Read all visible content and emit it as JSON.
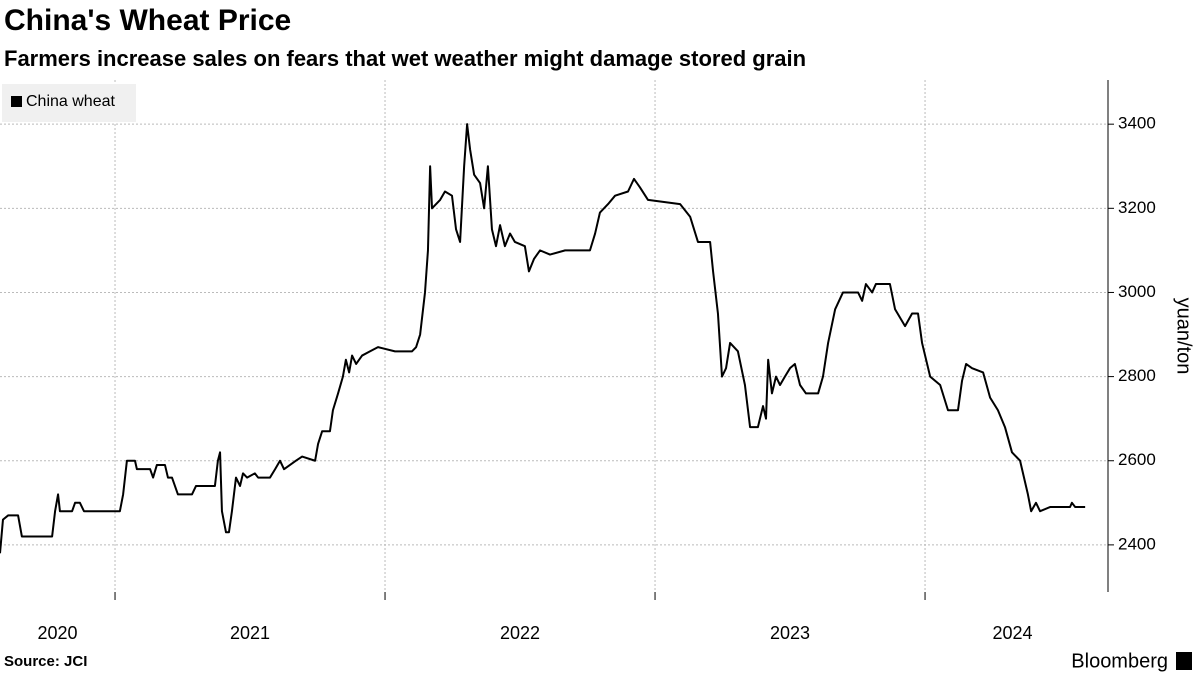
{
  "chart_data": {
    "type": "line",
    "title": "China's Wheat Price",
    "subtitle": "Farmers increase sales on fears that wet weather might damage stored grain",
    "y_label": "yuan/ton",
    "source": "Source: JCI",
    "brand": "Bloomberg",
    "legend": "top-left",
    "grid": true,
    "xlim": [
      2020.574,
      2024.648
    ],
    "xticks": [
      {
        "value": 2020,
        "label": "2020"
      },
      {
        "value": 2021,
        "label": "2021"
      },
      {
        "value": 2022,
        "label": "2022"
      },
      {
        "value": 2023,
        "label": "2023"
      },
      {
        "value": 2024,
        "label": "2024"
      }
    ],
    "ylim": [
      2288,
      3505
    ],
    "yticks": [
      2400,
      2600,
      2800,
      3000,
      3200,
      3400
    ],
    "x": [
      2020.574,
      2020.585,
      2020.604,
      2020.641,
      2020.655,
      2020.767,
      2020.778,
      2020.789,
      2020.796,
      2020.841,
      2020.852,
      2020.87,
      2020.885,
      2021.018,
      2021.03,
      2021.044,
      2021.074,
      2021.081,
      2021.13,
      2021.141,
      2021.155,
      2021.185,
      2021.196,
      2021.211,
      2021.233,
      2021.285,
      2021.3,
      2021.37,
      2021.381,
      2021.389,
      2021.396,
      2021.411,
      2021.422,
      2021.433,
      2021.448,
      2021.463,
      2021.474,
      2021.489,
      2021.518,
      2021.53,
      2021.574,
      2021.593,
      2021.611,
      2021.626,
      2021.67,
      2021.693,
      2021.741,
      2021.752,
      2021.767,
      2021.796,
      2021.807,
      2021.826,
      2021.844,
      2021.855,
      2021.867,
      2021.878,
      2021.893,
      2021.915,
      2021.944,
      2021.974,
      2022.037,
      2022.074,
      2022.1,
      2022.115,
      2022.13,
      2022.148,
      2022.159,
      2022.167,
      2022.174,
      2022.204,
      2022.222,
      2022.248,
      2022.263,
      2022.278,
      2022.293,
      2022.304,
      2022.315,
      2022.33,
      2022.352,
      2022.367,
      2022.381,
      2022.396,
      2022.411,
      2022.426,
      2022.444,
      2022.463,
      2022.481,
      2022.518,
      2022.533,
      2022.552,
      2022.574,
      2022.611,
      2022.667,
      2022.759,
      2022.778,
      2022.796,
      2022.826,
      2022.852,
      2022.9,
      2022.922,
      2022.944,
      2022.974,
      2023.093,
      2023.13,
      2023.159,
      2023.204,
      2023.215,
      2023.233,
      2023.248,
      2023.263,
      2023.278,
      2023.307,
      2023.333,
      2023.352,
      2023.381,
      2023.4,
      2023.411,
      2023.419,
      2023.433,
      2023.448,
      2023.463,
      2023.481,
      2023.5,
      2023.518,
      2023.537,
      2023.559,
      2023.604,
      2023.622,
      2023.641,
      2023.667,
      2023.696,
      2023.752,
      2023.767,
      2023.781,
      2023.804,
      2023.818,
      2023.87,
      2023.889,
      2023.926,
      2023.952,
      2023.974,
      2023.989,
      2024.019,
      2024.056,
      2024.085,
      2024.122,
      2024.137,
      2024.152,
      2024.174,
      2024.215,
      2024.241,
      2024.27,
      2024.296,
      2024.322,
      2024.352,
      2024.381,
      2024.393,
      2024.411,
      2024.426,
      2024.463,
      2024.537,
      2024.544,
      2024.556,
      2024.593
    ],
    "series": [
      {
        "name": "China wheat",
        "color": "#000000",
        "values": [
          2380,
          2460,
          2470,
          2470,
          2420,
          2420,
          2480,
          2520,
          2480,
          2480,
          2500,
          2500,
          2480,
          2480,
          2520,
          2600,
          2600,
          2580,
          2580,
          2560,
          2590,
          2590,
          2560,
          2560,
          2520,
          2520,
          2540,
          2540,
          2600,
          2620,
          2480,
          2430,
          2430,
          2480,
          2560,
          2540,
          2570,
          2560,
          2570,
          2560,
          2560,
          2580,
          2600,
          2580,
          2600,
          2610,
          2600,
          2640,
          2670,
          2670,
          2720,
          2760,
          2800,
          2840,
          2810,
          2850,
          2830,
          2850,
          2860,
          2870,
          2860,
          2860,
          2860,
          2870,
          2900,
          3000,
          3100,
          3300,
          3200,
          3220,
          3240,
          3230,
          3150,
          3120,
          3300,
          3400,
          3340,
          3280,
          3260,
          3200,
          3300,
          3150,
          3110,
          3160,
          3110,
          3140,
          3120,
          3110,
          3050,
          3080,
          3100,
          3090,
          3100,
          3100,
          3140,
          3190,
          3210,
          3230,
          3240,
          3270,
          3250,
          3220,
          3210,
          3180,
          3120,
          3120,
          3050,
          2950,
          2800,
          2820,
          2880,
          2860,
          2780,
          2680,
          2680,
          2730,
          2700,
          2840,
          2760,
          2800,
          2780,
          2800,
          2820,
          2830,
          2780,
          2760,
          2760,
          2800,
          2880,
          2960,
          3000,
          3000,
          2980,
          3020,
          3000,
          3020,
          3020,
          2960,
          2920,
          2950,
          2950,
          2880,
          2800,
          2780,
          2720,
          2720,
          2790,
          2830,
          2820,
          2810,
          2750,
          2720,
          2680,
          2620,
          2600,
          2520,
          2480,
          2500,
          2480,
          2490,
          2490,
          2500,
          2490,
          2490
        ]
      }
    ]
  }
}
